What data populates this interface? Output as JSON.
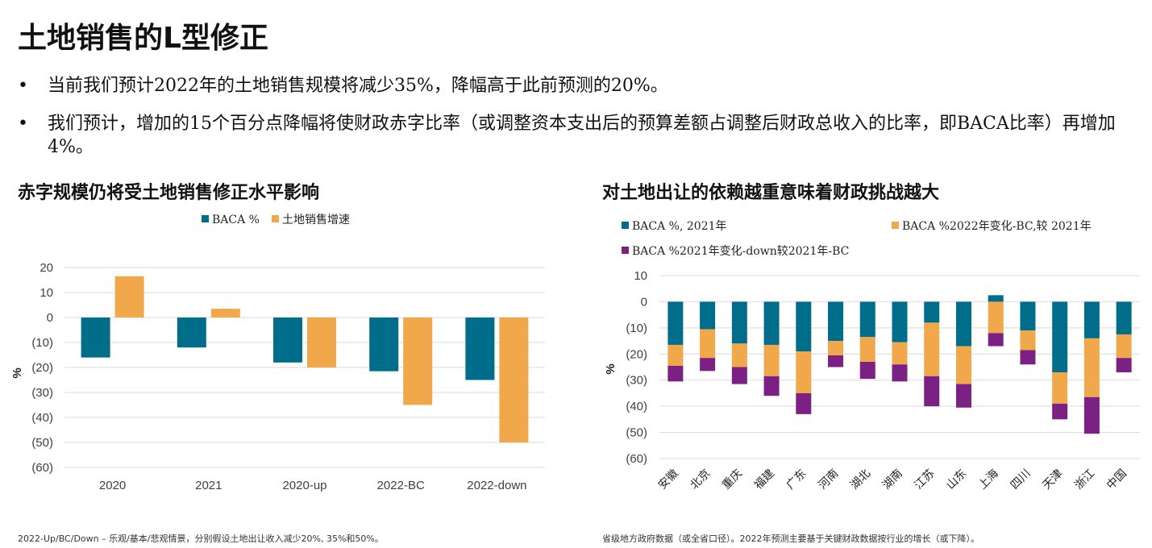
{
  "title": "土地销售的L型修正",
  "bullets": [
    "当前我们预计2022年的土地销售规模将减少35%，降幅高于此前预测的20%。",
    "我们预计，增加的15个百分点降幅将使财政赤字比率（或调整资本支出后的预算差额占调整后财政总收入的比率，即BACA比率）再增加4%。"
  ],
  "bullet_symbol": "•",
  "colors": {
    "teal": "#006d8a",
    "orange": "#f0a84a",
    "purple": "#7b2183",
    "grid": "#d9d9d9",
    "axis_text": "#404040"
  },
  "chart_data": [
    {
      "type": "bar",
      "title": "赤字规模仍将受土地销售修正水平影响",
      "ylabel": "%",
      "ylim": [
        -60,
        20
      ],
      "yticks": [
        20,
        10,
        0,
        -10,
        -20,
        -30,
        -40,
        -50,
        -60
      ],
      "ytick_labels": [
        "20",
        "10",
        "0",
        "(10)",
        "(20)",
        "(30)",
        "(40)",
        "(50)",
        "(60)"
      ],
      "categories": [
        "2020",
        "2021",
        "2020-up",
        "2022-BC",
        "2022-down"
      ],
      "series": [
        {
          "name": "BACA %",
          "color": "#006d8a",
          "values": [
            -16,
            -12,
            -18,
            -21.5,
            -25
          ]
        },
        {
          "name": "土地销售增速",
          "color": "#f0a84a",
          "values": [
            16.5,
            3.5,
            -20,
            -35,
            -50
          ]
        }
      ],
      "grid": true,
      "legend": "top-center"
    },
    {
      "type": "bar",
      "stacked": true,
      "title": "对土地出让的依赖越重意味着财政挑战越大",
      "ylabel": "%",
      "ylim": [
        -60,
        10
      ],
      "yticks": [
        10,
        0,
        -10,
        -20,
        -30,
        -40,
        -50,
        -60
      ],
      "ytick_labels": [
        "10",
        "0",
        "(10)",
        "(20)",
        "(30)",
        "(40)",
        "(50)",
        "(60)"
      ],
      "categories": [
        "安徽",
        "北京",
        "重庆",
        "福建",
        "广东",
        "河南",
        "湖北",
        "湖南",
        "江苏",
        "山东",
        "上海",
        "四川",
        "天津",
        "浙江",
        "中国"
      ],
      "series": [
        {
          "name": "BACA %, 2021年",
          "color": "#006d8a",
          "values": [
            -16.5,
            -10.5,
            -16,
            -16.5,
            -19,
            -15,
            -13.5,
            -15.5,
            -8,
            -17,
            2.5,
            -11,
            -27,
            -14,
            -12.5
          ]
        },
        {
          "name": "BACA %2022年变化-BC,较 2021年",
          "color": "#f0a84a",
          "values": [
            -8,
            -11,
            -9,
            -12,
            -16,
            -5.5,
            -9.5,
            -8.5,
            -20.5,
            -14.5,
            -12,
            -7.5,
            -12,
            -22.5,
            -9
          ]
        },
        {
          "name": "BACA %2021年变化-down较2021年-BC",
          "color": "#7b2183",
          "values": [
            -6,
            -5,
            -6.5,
            -7.5,
            -8,
            -4.5,
            -6.5,
            -6.5,
            -11.5,
            -9,
            -5,
            -5.5,
            -6,
            -14,
            -5.5
          ]
        }
      ],
      "grid": true,
      "legend": "top"
    }
  ],
  "footnotes": [
    "2022-Up/BC/Down – 乐观/基本/悲观情景，分别假设土地出让收入减少20%, 35%和50%。",
    "省级地方政府数据（或全省口径）。2022年预测主要基于关键财政数据按行业的增长（或下降）。"
  ]
}
